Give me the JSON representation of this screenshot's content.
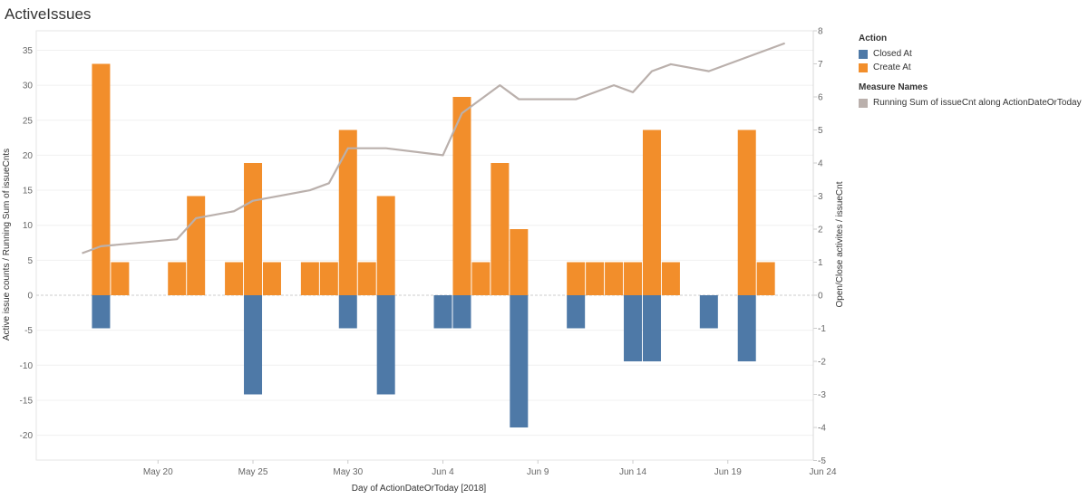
{
  "title": "ActiveIssues",
  "legend": {
    "action_title": "Action",
    "action_items": [
      {
        "label": "Closed At",
        "color": "#4e79a7"
      },
      {
        "label": "Create At",
        "color": "#f28e2b"
      }
    ],
    "measure_title": "Measure Names",
    "measure_items": [
      {
        "label": "Running Sum of issueCnt along ActionDateOrToday",
        "color": "#bab0ac"
      }
    ]
  },
  "chart_data": {
    "type": "bar",
    "xlabel": "Day of ActionDateOrToday [2018]",
    "ylabel_left": "Active issue counts / Running Sum of issueCnts",
    "ylabel_right": "Open/Close activites / issueCnt",
    "x_ticks": [
      "May 20",
      "May 25",
      "May 30",
      "Jun 4",
      "Jun 9",
      "Jun 14",
      "Jun 19",
      "Jun 24"
    ],
    "left_axis": {
      "ticks": [
        35,
        30,
        25,
        20,
        15,
        10,
        5,
        0,
        -5,
        -10,
        -15,
        -20
      ],
      "range": [
        -23,
        38
      ]
    },
    "right_axis": {
      "ticks": [
        8,
        7,
        6,
        5,
        4,
        3,
        2,
        1,
        0,
        -1,
        -2,
        -3,
        -4,
        -5
      ],
      "range": [
        -5,
        8
      ]
    },
    "series": [
      {
        "name": "Create At",
        "color": "#f28e2b",
        "axis": "right",
        "x": [
          "May 17",
          "May 18",
          "May 21",
          "May 22",
          "May 24",
          "May 25",
          "May 26",
          "May 28",
          "May 29",
          "May 30",
          "May 31",
          "Jun 1",
          "Jun 5",
          "Jun 6",
          "Jun 7",
          "Jun 8",
          "Jun 11",
          "Jun 12",
          "Jun 13",
          "Jun 14",
          "Jun 15",
          "Jun 16",
          "Jun 20",
          "Jun 21"
        ],
        "values": [
          7,
          1,
          1,
          3,
          1,
          4,
          1,
          1,
          1,
          5,
          1,
          3,
          6,
          1,
          4,
          2,
          1,
          1,
          1,
          1,
          5,
          1,
          5,
          1
        ]
      },
      {
        "name": "Closed At",
        "color": "#4e79a7",
        "axis": "right",
        "x": [
          "May 17",
          "May 25",
          "May 30",
          "Jun 1",
          "Jun 4",
          "Jun 5",
          "Jun 8",
          "Jun 11",
          "Jun 14",
          "Jun 15",
          "Jun 18",
          "Jun 20"
        ],
        "values": [
          -1,
          -3,
          -1,
          -3,
          -1,
          -1,
          -4,
          -1,
          -2,
          -2,
          -1,
          -2
        ]
      },
      {
        "name": "Running Sum of issueCnt along ActionDateOrToday",
        "color": "#bab0ac",
        "axis": "left",
        "type": "line",
        "x": [
          "May 16",
          "May 17",
          "May 21",
          "May 22",
          "May 24",
          "May 25",
          "May 28",
          "May 29",
          "May 30",
          "May 31",
          "Jun 1",
          "Jun 4",
          "Jun 5",
          "Jun 7",
          "Jun 8",
          "Jun 11",
          "Jun 13",
          "Jun 14",
          "Jun 15",
          "Jun 16",
          "Jun 18",
          "Jun 22"
        ],
        "values": [
          6,
          7,
          8,
          11,
          12,
          13.5,
          15,
          16,
          21,
          21,
          21,
          20,
          26,
          30,
          28,
          28,
          30,
          29,
          32,
          33,
          32,
          36
        ]
      }
    ]
  }
}
